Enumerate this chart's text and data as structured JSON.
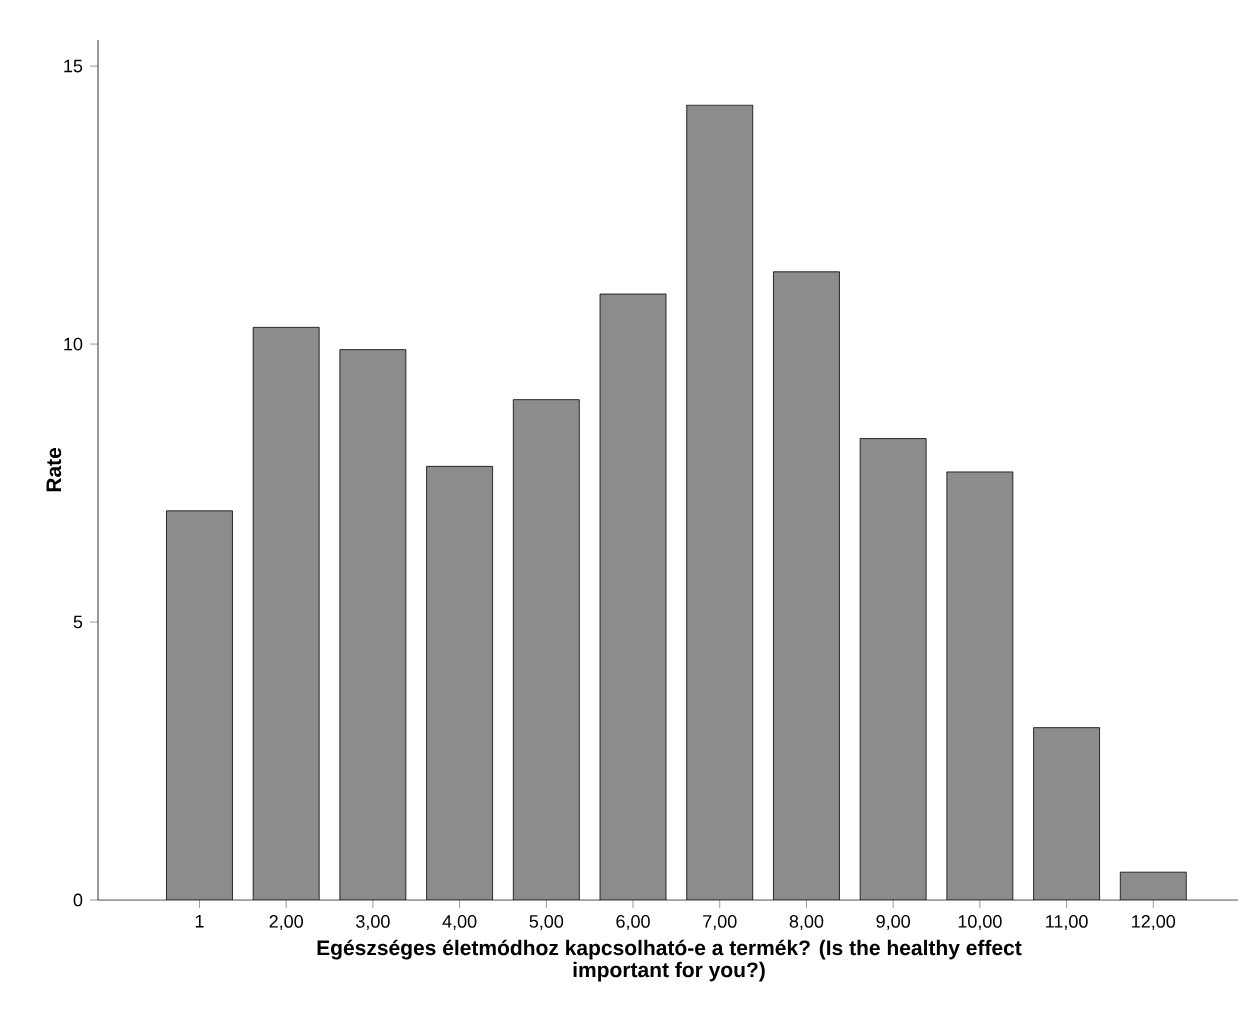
{
  "chart_data": {
    "type": "bar",
    "xlabel": "Egészséges életmódhoz kapcsolható-e a termék? (Is the healthy effect important for you?)",
    "ylabel": "Rate",
    "categories": [
      "1",
      "2,00",
      "3,00",
      "4,00",
      "5,00",
      "6,00",
      "7,00",
      "8,00",
      "9,00",
      "10,00",
      "11,00",
      "12,00"
    ],
    "values": [
      7.0,
      10.3,
      9.9,
      7.8,
      9.0,
      10.9,
      14.3,
      11.3,
      8.3,
      7.7,
      3.1,
      0.5
    ],
    "color": "#8c8c8c",
    "ylim": [
      0,
      15.47
    ],
    "yticks": [
      0,
      5,
      10,
      15
    ]
  }
}
